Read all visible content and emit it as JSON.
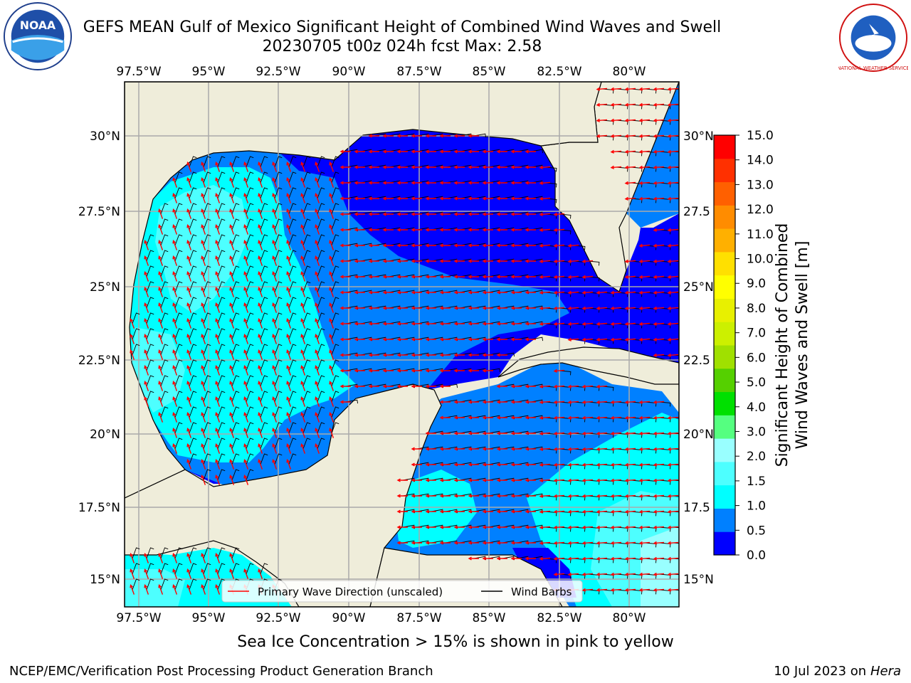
{
  "title": {
    "line1": "GEFS MEAN Gulf of Mexico Significant Height of Combined Wind Waves and Swell",
    "line2": "20230705 t00z 024h fcst   Max: 2.58"
  },
  "map": {
    "lon_ticks": [
      "97.5°W",
      "95°W",
      "92.5°W",
      "90°W",
      "87.5°W",
      "85°W",
      "82.5°W",
      "80°W"
    ],
    "lat_ticks": [
      "30°N",
      "27.5°N",
      "25°N",
      "22.5°N",
      "20°N",
      "17.5°N",
      "15°N"
    ],
    "lat_ticks_right": [
      "30°N",
      "27.5",
      "25°N",
      "22.5",
      "20°N",
      "17.5",
      "15°N"
    ],
    "legend": {
      "wave_label": "Primary Wave Direction (unscaled)",
      "barb_label": "Wind Barbs"
    },
    "colors": {
      "land": "#efedda",
      "wave_arrow": "#ff0000",
      "barb": "#000000",
      "grid": "#aaaaaa"
    }
  },
  "colorbar": {
    "label_line1": "Significant Height of Combined",
    "label_line2": "Wind Waves and Swell [m]",
    "ticks": [
      "15.0",
      "14.0",
      "13.0",
      "12.0",
      "11.0",
      "10.0",
      "9.0",
      "8.0",
      "7.0",
      "6.0",
      "5.0",
      "4.0",
      "3.0",
      "2.0",
      "1.5",
      "1.0",
      "0.5",
      "0.0"
    ],
    "colors": [
      "#0000ff",
      "#0080ff",
      "#00ffff",
      "#4dffff",
      "#99ffff",
      "#55ff80",
      "#00e000",
      "#55d000",
      "#a0e000",
      "#ccf000",
      "#e8f000",
      "#ffff00",
      "#ffe000",
      "#ffb000",
      "#ff8c00",
      "#ff6000",
      "#ff3000",
      "#ff0000"
    ]
  },
  "footer": {
    "caption": "Sea Ice Concentration > 15% is shown in pink to yellow",
    "left": "NCEP/EMC/Verification Post Processing Product Generation Branch",
    "right_date": "10 Jul 2023 on",
    "right_host": "Hera"
  },
  "logos": {
    "noaa_text": "NOAA",
    "nws_text": "NATIONAL WEATHER SERVICE"
  }
}
